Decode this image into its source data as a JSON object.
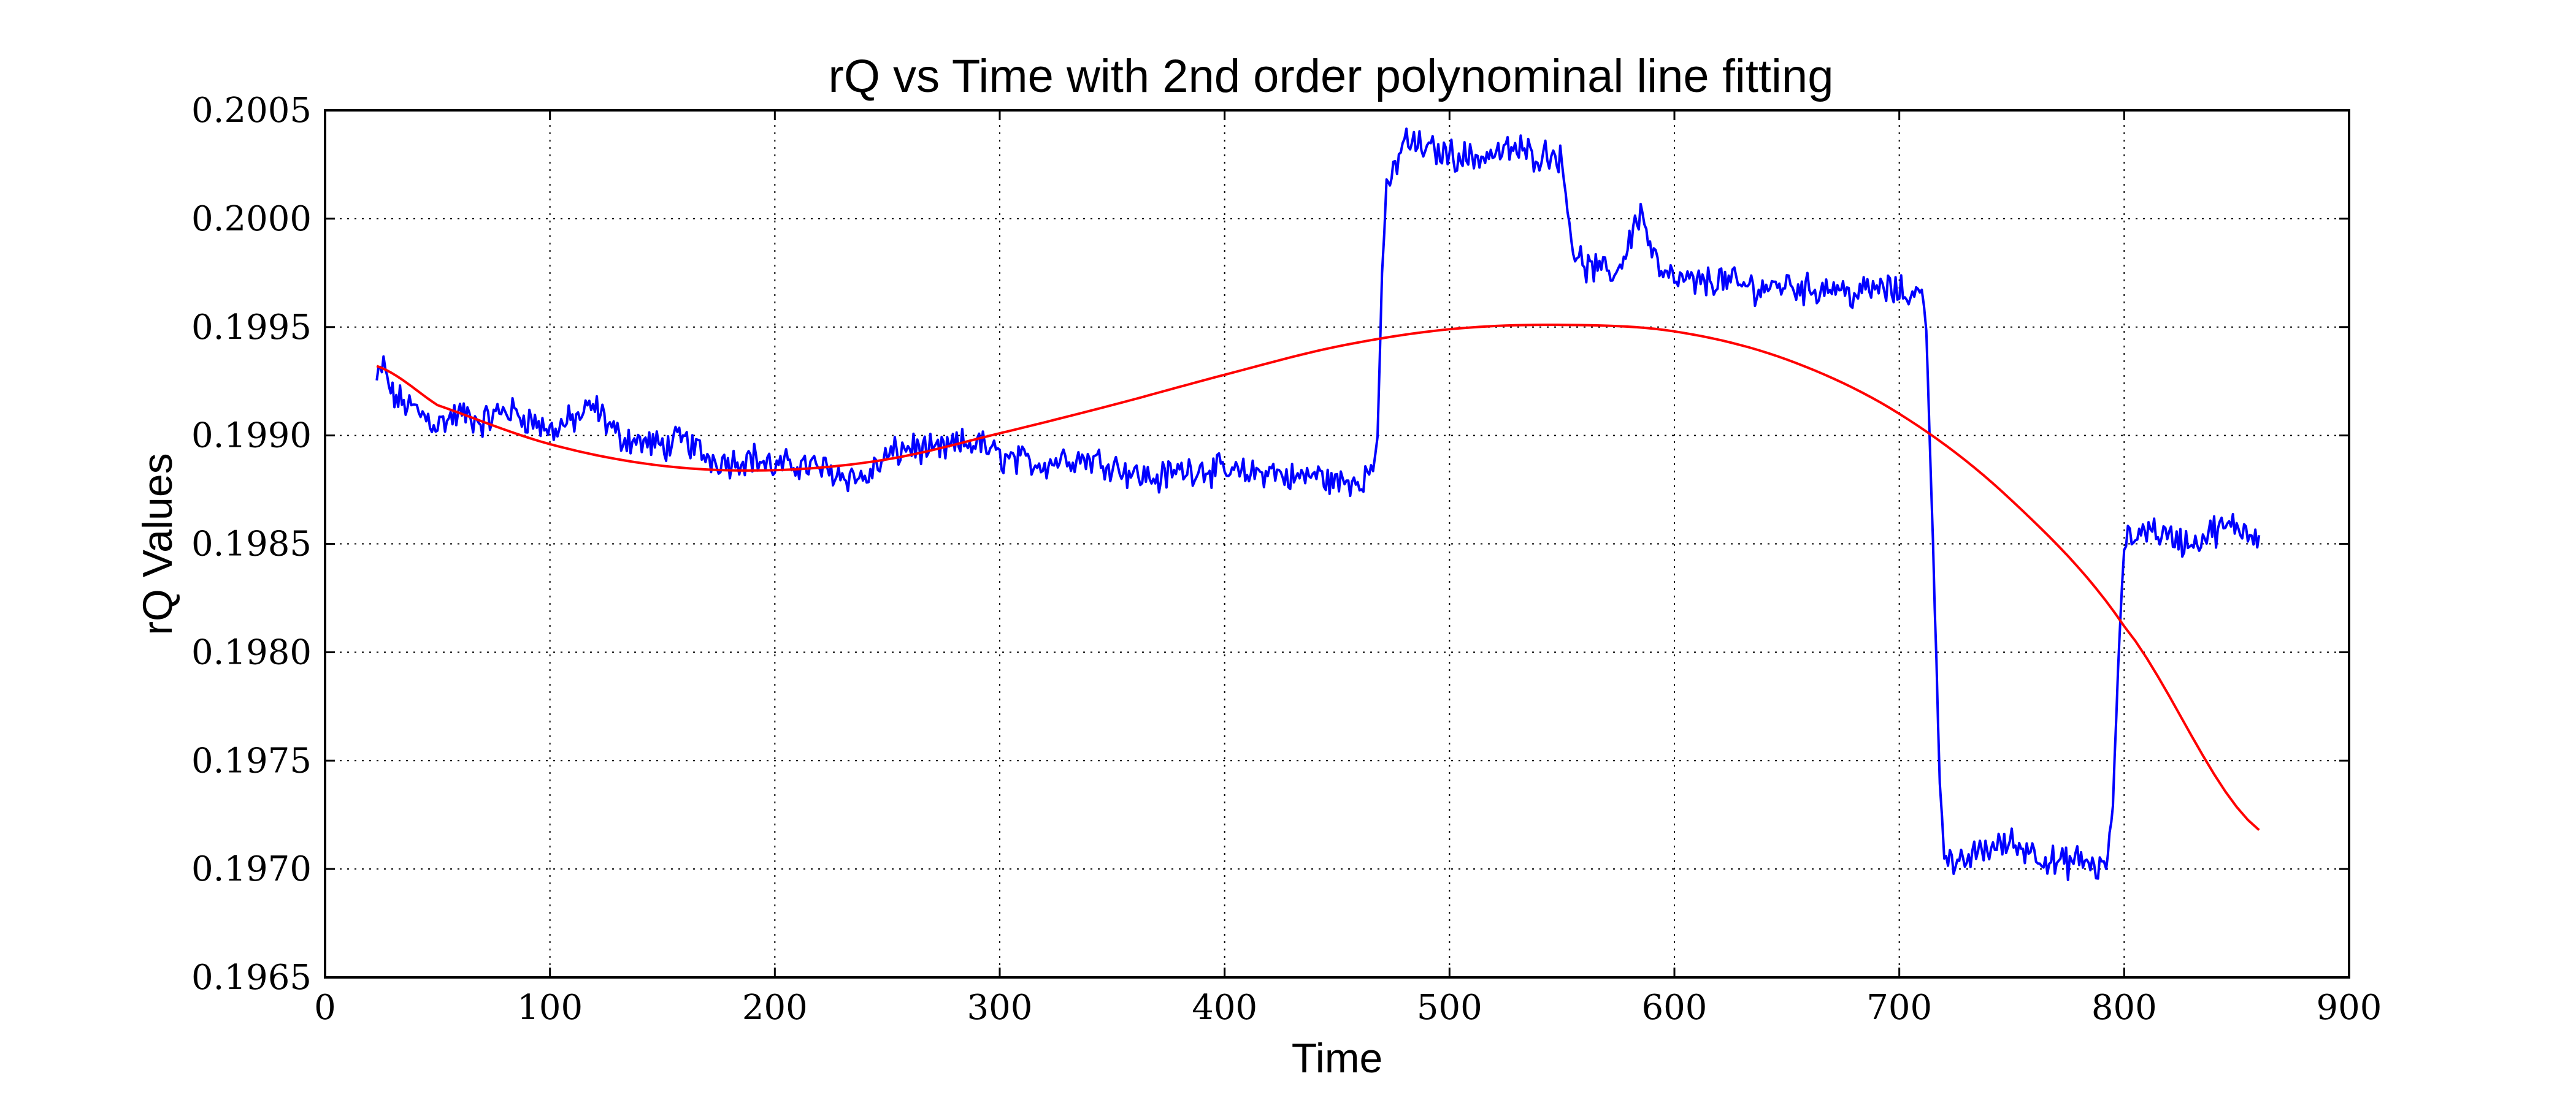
{
  "chart_data": {
    "type": "line",
    "title": "rQ vs Time with 2nd order polynominal line fitting",
    "xlabel": "Time",
    "ylabel": "rQ Values",
    "xlim": [
      0,
      900
    ],
    "ylim": [
      0.1965,
      0.2005
    ],
    "xticks": [
      0,
      100,
      200,
      300,
      400,
      500,
      600,
      700,
      800,
      900
    ],
    "yticks": [
      0.1965,
      0.197,
      0.1975,
      0.198,
      0.1985,
      0.199,
      0.1995,
      0.2,
      0.2005
    ],
    "xtick_labels": [
      "0",
      "100",
      "200",
      "300",
      "400",
      "500",
      "600",
      "700",
      "800",
      "900"
    ],
    "ytick_labels": [
      "0.1965",
      "0.1970",
      "0.1975",
      "0.1980",
      "0.1985",
      "0.1990",
      "0.1995",
      "0.2000",
      "0.2005"
    ],
    "grid": true,
    "legend": "none",
    "series": [
      {
        "color": "#0000ff",
        "style": "noisy",
        "x": [
          23,
          26,
          30,
          40,
          50,
          60,
          70,
          80,
          90,
          100,
          110,
          120,
          130,
          140,
          150,
          160,
          170,
          180,
          190,
          200,
          210,
          220,
          230,
          240,
          250,
          260,
          270,
          280,
          290,
          300,
          310,
          320,
          330,
          340,
          350,
          360,
          370,
          380,
          390,
          400,
          410,
          420,
          430,
          440,
          450,
          460,
          466,
          468,
          470,
          472,
          475,
          480,
          490,
          500,
          510,
          520,
          530,
          540,
          547,
          550,
          555,
          560,
          570,
          575,
          580,
          585,
          590,
          595,
          600,
          610,
          620,
          630,
          640,
          650,
          660,
          670,
          680,
          690,
          700,
          710,
          712,
          715,
          718,
          720,
          725,
          730,
          740,
          750,
          760,
          770,
          780,
          790,
          792,
          795,
          798,
          800,
          810,
          820,
          830,
          840,
          850,
          860
        ],
        "y": [
          0.19925,
          0.19932,
          0.19918,
          0.19912,
          0.19905,
          0.1991,
          0.19906,
          0.19912,
          0.19908,
          0.19902,
          0.19907,
          0.19913,
          0.199,
          0.19897,
          0.19895,
          0.19898,
          0.1989,
          0.19888,
          0.1989,
          0.19885,
          0.19887,
          0.19885,
          0.19882,
          0.1988,
          0.1989,
          0.19895,
          0.19892,
          0.19895,
          0.19897,
          0.1989,
          0.19888,
          0.19887,
          0.1989,
          0.19889,
          0.19887,
          0.19882,
          0.1988,
          0.19884,
          0.19885,
          0.19883,
          0.19882,
          0.19884,
          0.1988,
          0.19882,
          0.19878,
          0.1988,
          0.19884,
          0.199,
          0.19975,
          0.2001,
          0.20022,
          0.20036,
          0.20032,
          0.2003,
          0.20028,
          0.2003,
          0.20032,
          0.20029,
          0.20031,
          0.20025,
          0.19985,
          0.19978,
          0.19975,
          0.19976,
          0.1999,
          0.20004,
          0.19985,
          0.19973,
          0.19972,
          0.1997,
          0.19972,
          0.19969,
          0.19968,
          0.1997,
          0.19967,
          0.19969,
          0.19965,
          0.19968,
          0.19966,
          0.19965,
          0.1995,
          0.1985,
          0.1974,
          0.1971,
          0.19698,
          0.19705,
          0.1971,
          0.19712,
          0.19708,
          0.19702,
          0.19704,
          0.197,
          0.197,
          0.1973,
          0.1981,
          0.1985,
          0.19858,
          0.19853,
          0.1985,
          0.19856,
          0.19858,
          0.19854
        ]
      },
      {
        "color": "#ff0000",
        "style": "smooth",
        "x": [
          23,
          50,
          100,
          150,
          200,
          250,
          300,
          350,
          400,
          450,
          500,
          550,
          600,
          650,
          700,
          750,
          800,
          860
        ],
        "y": [
          0.19932,
          0.19914,
          0.19896,
          0.19886,
          0.19884,
          0.19889,
          0.19901,
          0.19914,
          0.19928,
          0.19941,
          0.19949,
          0.19951,
          0.19948,
          0.19935,
          0.1991,
          0.1987,
          0.19812,
          0.19718
        ]
      }
    ]
  }
}
